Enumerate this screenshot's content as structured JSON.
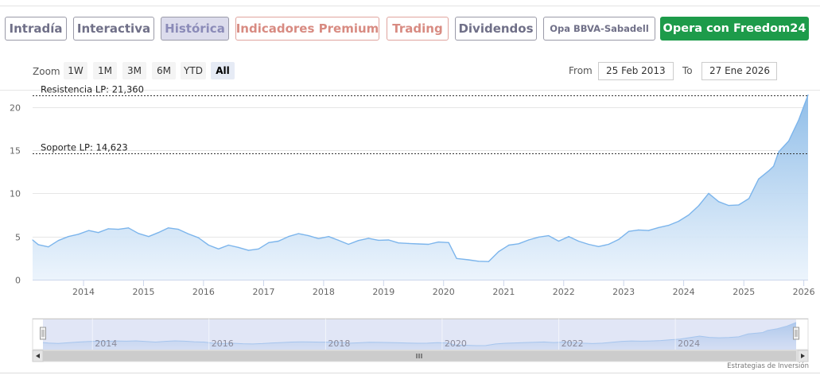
{
  "tabs": [
    {
      "label": "Intradía"
    },
    {
      "label": "Interactiva"
    },
    {
      "label": "Histórica"
    },
    {
      "label": "Indicadores Premium"
    },
    {
      "label": "Trading"
    },
    {
      "label": "Dividendos"
    },
    {
      "label": "Opa BBVA-Sabadell"
    },
    {
      "label": "Opera con Freedom24"
    }
  ],
  "zoom": {
    "label": "Zoom",
    "buttons": [
      "1W",
      "1M",
      "3M",
      "6M",
      "YTD",
      "All"
    ],
    "selected": "All"
  },
  "range": {
    "from_label": "From",
    "from_value": "25 Feb 2013",
    "to_label": "To",
    "to_value": "27 Ene 2026"
  },
  "credit": "Estrategias de Inversión",
  "colors": {
    "line": "#7cb5ec",
    "area_top": "#8fbde8",
    "area_bottom": "#eaf3fc",
    "navigator_mask": "#c9d2ef",
    "active_tab": "#dcdcec",
    "cta_green": "#1d9b4a"
  },
  "chart_data": {
    "type": "area",
    "x_axis_type": "date",
    "ylim": [
      0,
      22
    ],
    "y_ticks": [
      0,
      5,
      10,
      15,
      20
    ],
    "x_ticks": [
      "2014",
      "2015",
      "2016",
      "2017",
      "2018",
      "2019",
      "2020",
      "2021",
      "2022",
      "2023",
      "2024",
      "2025",
      "2026"
    ],
    "navigator_ticks": [
      "2014",
      "2016",
      "2018",
      "2020",
      "2022",
      "2024"
    ],
    "grid": true,
    "legend": "none",
    "plot_lines": [
      {
        "label": "Resistencia LP: 21,360",
        "value": 21.36
      },
      {
        "label": "Soporte LP: 14,623",
        "value": 14.623
      }
    ],
    "series": [
      {
        "x": [
          "2013-02-25",
          "2013-04-01",
          "2013-06-01",
          "2013-08-01",
          "2013-10-01",
          "2013-12-01",
          "2014-02-01",
          "2014-04-01",
          "2014-06-01",
          "2014-08-01",
          "2014-10-01",
          "2014-12-01",
          "2015-02-01",
          "2015-04-01",
          "2015-06-01",
          "2015-08-01",
          "2015-10-01",
          "2015-12-01",
          "2016-02-01",
          "2016-04-01",
          "2016-06-01",
          "2016-08-01",
          "2016-10-01",
          "2016-12-01",
          "2017-02-01",
          "2017-04-01",
          "2017-06-01",
          "2017-08-01",
          "2017-10-01",
          "2017-12-01",
          "2018-02-01",
          "2018-04-01",
          "2018-06-01",
          "2018-08-01",
          "2018-10-01",
          "2018-12-01",
          "2019-02-01",
          "2019-04-01",
          "2019-06-01",
          "2019-08-01",
          "2019-10-01",
          "2019-12-01",
          "2020-02-01",
          "2020-03-20",
          "2020-06-01",
          "2020-08-01",
          "2020-10-01",
          "2020-12-01",
          "2021-02-01",
          "2021-04-01",
          "2021-06-01",
          "2021-08-01",
          "2021-10-01",
          "2021-12-01",
          "2022-02-01",
          "2022-04-01",
          "2022-06-01",
          "2022-08-01",
          "2022-10-01",
          "2022-12-01",
          "2023-02-01",
          "2023-04-01",
          "2023-06-01",
          "2023-08-01",
          "2023-10-01",
          "2023-12-01",
          "2024-02-01",
          "2024-04-01",
          "2024-06-01",
          "2024-08-01",
          "2024-10-01",
          "2024-12-01",
          "2025-02-01",
          "2025-04-01",
          "2025-06-01",
          "2025-07-01",
          "2025-08-01",
          "2025-10-01",
          "2025-12-01",
          "2026-01-27"
        ],
        "y": [
          4.6,
          4.2,
          3.8,
          4.4,
          5.0,
          5.4,
          5.7,
          5.6,
          5.9,
          5.7,
          6.0,
          5.5,
          5.0,
          5.6,
          6.0,
          5.7,
          5.3,
          5.0,
          4.0,
          3.7,
          4.0,
          3.6,
          3.4,
          3.7,
          4.3,
          4.6,
          5.0,
          5.2,
          5.1,
          4.9,
          5.0,
          4.7,
          4.1,
          4.4,
          4.8,
          4.7,
          4.6,
          4.4,
          4.2,
          4.0,
          4.1,
          4.5,
          4.3,
          2.6,
          2.3,
          2.0,
          2.1,
          3.4,
          4.0,
          4.3,
          4.6,
          4.8,
          5.1,
          4.6,
          5.0,
          4.6,
          4.1,
          3.7,
          4.1,
          4.8,
          5.6,
          5.9,
          5.7,
          5.9,
          6.3,
          6.9,
          7.5,
          8.7,
          10.0,
          8.9,
          8.6,
          8.8,
          9.4,
          11.8,
          12.6,
          13.0,
          14.8,
          16.2,
          18.5,
          21.4
        ]
      }
    ]
  }
}
